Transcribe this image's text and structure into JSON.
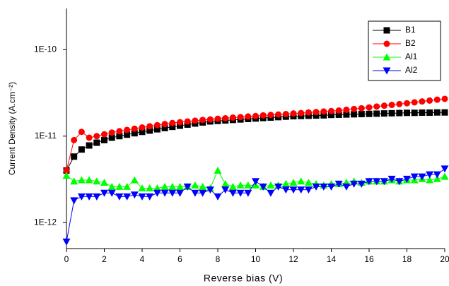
{
  "chart_data": {
    "type": "line",
    "y_log": true,
    "x_label": "Reverse bias (V)",
    "y_label": "Current Density (A.cm⁻²)",
    "x": [
      0,
      0.4,
      0.8,
      1.2,
      1.6,
      2,
      2.4,
      2.8,
      3.2,
      3.6,
      4,
      4.4,
      4.8,
      5.2,
      5.6,
      6,
      6.4,
      6.8,
      7.2,
      7.6,
      8,
      8.4,
      8.8,
      9.2,
      9.6,
      10,
      10.4,
      10.8,
      11.2,
      11.6,
      12,
      12.4,
      12.8,
      13.2,
      13.6,
      14,
      14.4,
      14.8,
      15.2,
      15.6,
      16,
      16.4,
      16.8,
      17.2,
      17.6,
      18,
      18.4,
      18.8,
      19.2,
      19.6,
      20
    ],
    "series": [
      {
        "name": "B1",
        "color": "#000000",
        "marker": "square",
        "values": [
          4e-12,
          5.8e-12,
          7e-12,
          7.8e-12,
          8.4e-12,
          9e-12,
          9.6e-12,
          1e-11,
          1.04e-11,
          1.08e-11,
          1.12e-11,
          1.16e-11,
          1.2e-11,
          1.24e-11,
          1.28e-11,
          1.32e-11,
          1.36e-11,
          1.4e-11,
          1.44e-11,
          1.48e-11,
          1.5e-11,
          1.52e-11,
          1.54e-11,
          1.56e-11,
          1.58e-11,
          1.6e-11,
          1.62e-11,
          1.64e-11,
          1.66e-11,
          1.68e-11,
          1.7e-11,
          1.71e-11,
          1.72e-11,
          1.73e-11,
          1.74e-11,
          1.76e-11,
          1.77e-11,
          1.78e-11,
          1.79e-11,
          1.8e-11,
          1.81e-11,
          1.82e-11,
          1.83e-11,
          1.84e-11,
          1.85e-11,
          1.86e-11,
          1.86e-11,
          1.87e-11,
          1.87e-11,
          1.88e-11,
          1.88e-11
        ]
      },
      {
        "name": "B2",
        "color": "#ff0000",
        "marker": "circle",
        "values": [
          4e-12,
          9e-12,
          1.12e-11,
          9.6e-12,
          1e-11,
          1.05e-11,
          1.1e-11,
          1.14e-11,
          1.18e-11,
          1.22e-11,
          1.26e-11,
          1.3e-11,
          1.34e-11,
          1.38e-11,
          1.42e-11,
          1.45e-11,
          1.48e-11,
          1.51e-11,
          1.54e-11,
          1.56e-11,
          1.59e-11,
          1.61e-11,
          1.64e-11,
          1.66e-11,
          1.69e-11,
          1.71e-11,
          1.74e-11,
          1.76e-11,
          1.78e-11,
          1.8e-11,
          1.83e-11,
          1.85e-11,
          1.88e-11,
          1.9e-11,
          1.93e-11,
          1.95e-11,
          1.98e-11,
          2.02e-11,
          2.06e-11,
          2.1e-11,
          2.15e-11,
          2.2e-11,
          2.25e-11,
          2.3e-11,
          2.35e-11,
          2.4e-11,
          2.46e-11,
          2.52e-11,
          2.58e-11,
          2.64e-11,
          2.7e-11
        ]
      },
      {
        "name": "Al1",
        "color": "#00ff00",
        "marker": "triangle-up",
        "values": [
          3.5e-12,
          3e-12,
          3.1e-12,
          3.1e-12,
          3e-12,
          2.9e-12,
          2.6e-12,
          2.6e-12,
          2.6e-12,
          3.1e-12,
          2.5e-12,
          2.5e-12,
          2.5e-12,
          2.6e-12,
          2.6e-12,
          2.6e-12,
          2.6e-12,
          2.7e-12,
          2.6e-12,
          2.5e-12,
          4e-12,
          2.8e-12,
          2.6e-12,
          2.7e-12,
          2.7e-12,
          2.7e-12,
          2.6e-12,
          2.7e-12,
          2.7e-12,
          2.8e-12,
          2.9e-12,
          3e-12,
          2.9e-12,
          2.8e-12,
          2.7e-12,
          2.8e-12,
          2.8e-12,
          2.9e-12,
          3e-12,
          2.9e-12,
          3e-12,
          3e-12,
          3e-12,
          3.1e-12,
          3e-12,
          3.1e-12,
          3.1e-12,
          3.2e-12,
          3.1e-12,
          3.2e-12,
          3.4e-12
        ]
      },
      {
        "name": "Al2",
        "color": "#0000ff",
        "marker": "triangle-down",
        "values": [
          6e-13,
          1.8e-12,
          2e-12,
          2e-12,
          2e-12,
          2.2e-12,
          2.2e-12,
          2e-12,
          2e-12,
          2.1e-12,
          2e-12,
          2e-12,
          2.2e-12,
          2.2e-12,
          2.2e-12,
          2.2e-12,
          2.6e-12,
          2.2e-12,
          2.2e-12,
          2.4e-12,
          2e-12,
          2.4e-12,
          2.2e-12,
          2.2e-12,
          2.2e-12,
          3e-12,
          2.6e-12,
          2.2e-12,
          2.6e-12,
          2.4e-12,
          2.4e-12,
          2.4e-12,
          2.4e-12,
          2.6e-12,
          2.6e-12,
          2.6e-12,
          2.8e-12,
          2.6e-12,
          2.8e-12,
          2.8e-12,
          3e-12,
          3e-12,
          3e-12,
          3.2e-12,
          3e-12,
          3.2e-12,
          3.4e-12,
          3.4e-12,
          3.6e-12,
          3.6e-12,
          4.2e-12
        ]
      }
    ],
    "xlim": [
      0,
      20
    ],
    "xticks": [
      0,
      2,
      4,
      6,
      8,
      10,
      12,
      14,
      16,
      18,
      20
    ],
    "ylim": [
      5e-13,
      3e-10
    ],
    "yticks": [
      {
        "value": 1e-12,
        "label": "1E-12"
      },
      {
        "value": 1e-11,
        "label": "1E-11"
      },
      {
        "value": 1e-10,
        "label": "1E-10"
      }
    ],
    "legend": "upper right"
  }
}
